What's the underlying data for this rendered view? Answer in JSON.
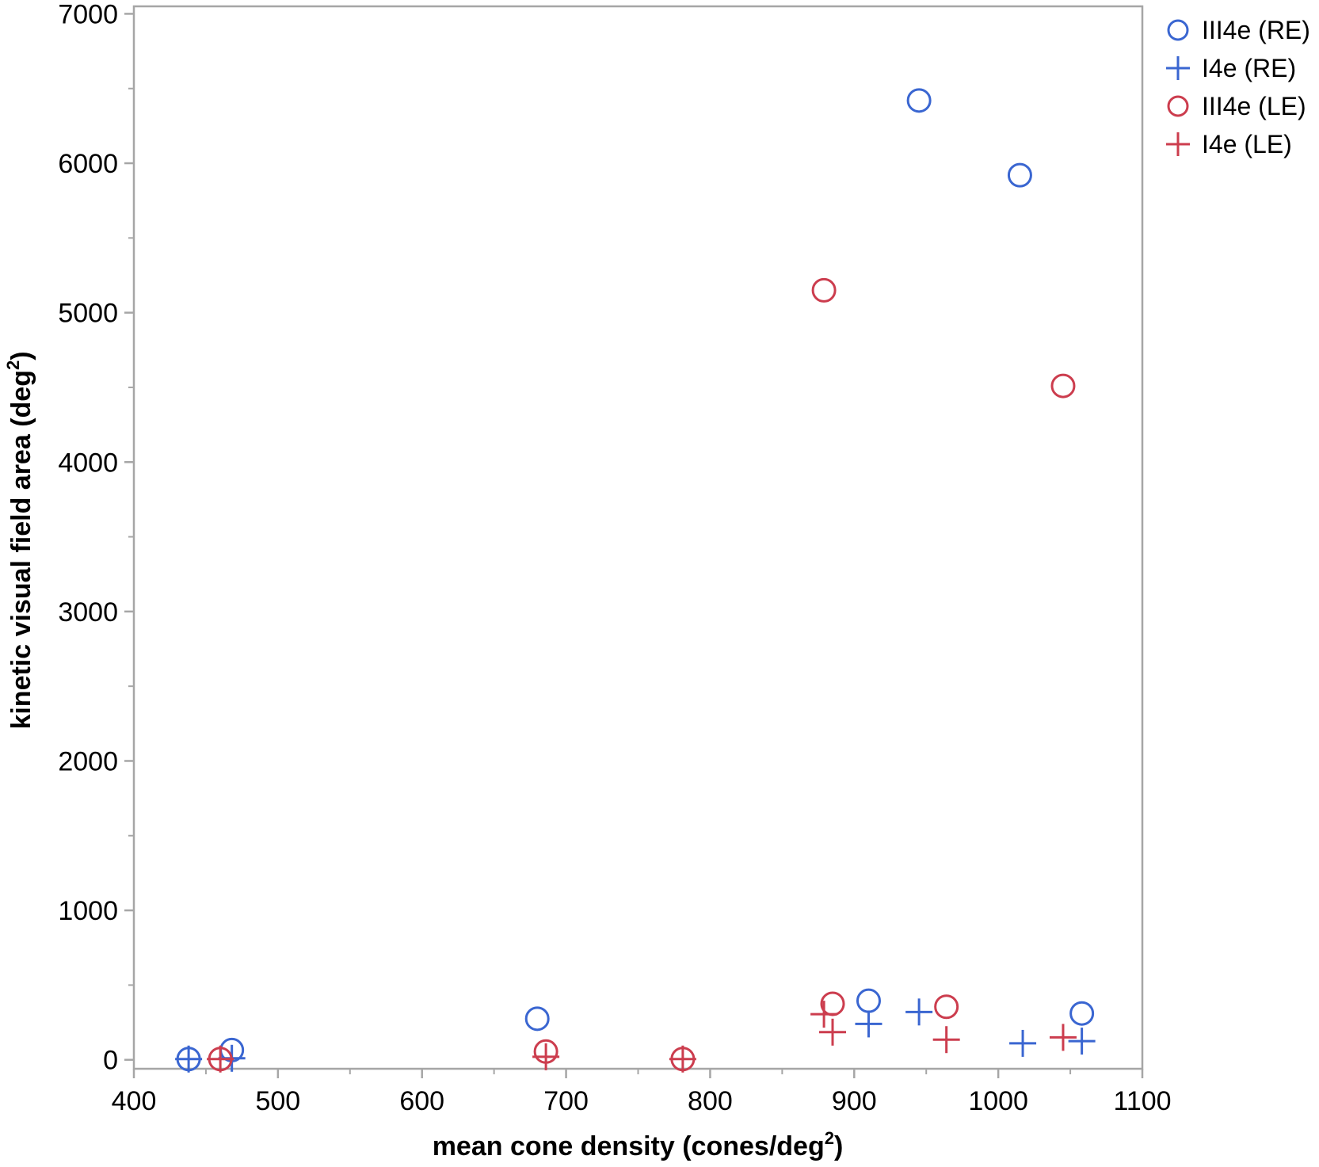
{
  "chart_data": {
    "type": "scatter",
    "xlabel": "mean cone density (cones/deg",
    "xlabel_sup": "2",
    "xlabel_end": ")",
    "ylabel": "kinetic visual field area (deg",
    "ylabel_sup": "2",
    "ylabel_end": ")",
    "xlim": [
      400,
      1100
    ],
    "ylim": [
      -60,
      7050
    ],
    "x_ticks": [
      400,
      500,
      600,
      700,
      800,
      900,
      1000,
      1100
    ],
    "y_ticks": [
      0,
      1000,
      2000,
      3000,
      4000,
      5000,
      6000,
      7000
    ],
    "grid": false,
    "legend_position": "right-top",
    "series": [
      {
        "name": "III4e (RE)",
        "marker": "circle",
        "color": "#3a66d1",
        "points": [
          [
            438,
            5
          ],
          [
            468,
            65
          ],
          [
            680,
            275
          ],
          [
            910,
            395
          ],
          [
            945,
            6420
          ],
          [
            1015,
            5920
          ],
          [
            1058,
            310
          ]
        ]
      },
      {
        "name": "I4e (RE)",
        "marker": "plus",
        "color": "#3a66d1",
        "points": [
          [
            438,
            5
          ],
          [
            468,
            10
          ],
          [
            910,
            240
          ],
          [
            945,
            320
          ],
          [
            1017,
            110
          ],
          [
            1058,
            125
          ]
        ]
      },
      {
        "name": "III4e (LE)",
        "marker": "circle",
        "color": "#cc3d4e",
        "points": [
          [
            460,
            5
          ],
          [
            686,
            55
          ],
          [
            781,
            5
          ],
          [
            879,
            5150
          ],
          [
            885,
            375
          ],
          [
            964,
            355
          ],
          [
            1045,
            4510
          ]
        ]
      },
      {
        "name": "I4e (LE)",
        "marker": "plus",
        "color": "#cc3d4e",
        "points": [
          [
            460,
            5
          ],
          [
            686,
            20
          ],
          [
            781,
            5
          ],
          [
            879,
            305
          ],
          [
            885,
            185
          ],
          [
            964,
            135
          ],
          [
            1045,
            150
          ]
        ]
      }
    ]
  }
}
